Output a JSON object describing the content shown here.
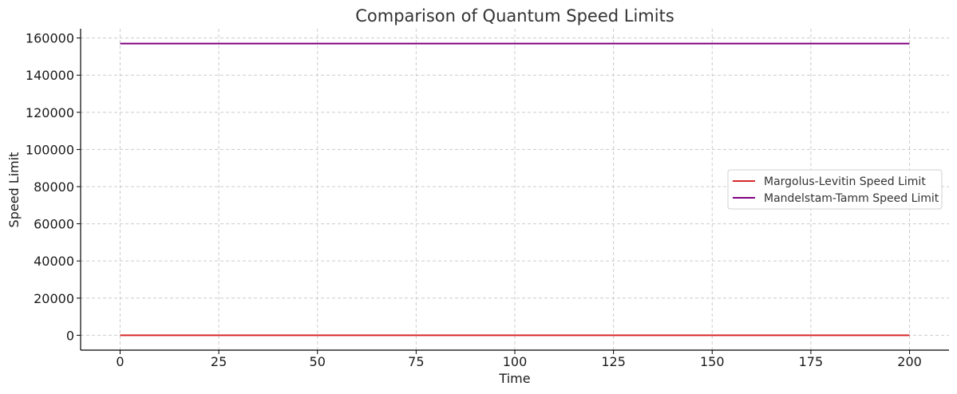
{
  "chart_data": {
    "type": "line",
    "title": "Comparison of Quantum Speed Limits",
    "xlabel": "Time",
    "ylabel": "Speed Limit",
    "xlim": [
      -10,
      210
    ],
    "ylim": [
      -8000,
      165000
    ],
    "xticks": [
      0,
      25,
      50,
      75,
      100,
      125,
      150,
      175,
      200
    ],
    "yticks": [
      0,
      20000,
      40000,
      60000,
      80000,
      100000,
      120000,
      140000,
      160000
    ],
    "grid": true,
    "legend_position": "center-right",
    "series": [
      {
        "name": "Margolus-Levitin Speed Limit",
        "color": "#d62728",
        "x": [
          0,
          200
        ],
        "y": [
          0,
          0
        ]
      },
      {
        "name": "Mandelstam-Tamm Speed Limit",
        "color": "#800080",
        "x": [
          0,
          200
        ],
        "y": [
          157000,
          157000
        ]
      }
    ]
  }
}
